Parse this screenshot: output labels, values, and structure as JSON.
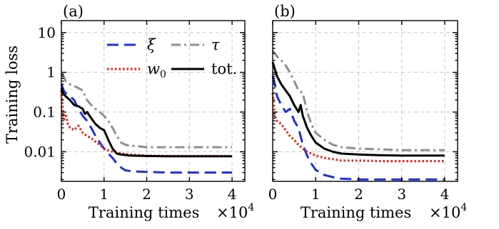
{
  "chart_data": [
    {
      "type": "line",
      "panel_label": "(a)",
      "xlabel": "Training times",
      "x_multiplier_label": "×10",
      "x_multiplier_exp": "4",
      "ylabel": "Training loss",
      "yscale": "log",
      "xlim": [
        0,
        4.3
      ],
      "ylim": [
        0.0018,
        20
      ],
      "xticks": [
        0,
        1,
        2,
        3,
        4
      ],
      "xtick_labels": [
        "0",
        "1",
        "2",
        "3",
        "4"
      ],
      "yticks": [
        0.01,
        0.1,
        1,
        10
      ],
      "ytick_labels": [
        "0.01",
        "0.1",
        "1",
        "10"
      ],
      "grid": true,
      "legend_position": "upper-right",
      "series": [
        {
          "name": "ξ",
          "name_style": "italic",
          "color": "#1f2fd9",
          "style": "dashed",
          "x": [
            0,
            0.05,
            0.1,
            0.2,
            0.3,
            0.4,
            0.5,
            0.6,
            0.7,
            0.8,
            0.9,
            1.0,
            1.1,
            1.2,
            1.3,
            1.4,
            1.5,
            1.7,
            2.0,
            2.5,
            3.0,
            3.5,
            4.0
          ],
          "y": [
            0.5,
            0.35,
            0.3,
            0.25,
            0.2,
            0.12,
            0.08,
            0.06,
            0.04,
            0.025,
            0.017,
            0.012,
            0.009,
            0.007,
            0.005,
            0.004,
            0.0034,
            0.0032,
            0.0031,
            0.003,
            0.003,
            0.003,
            0.003
          ]
        },
        {
          "name": "w",
          "name_sub": "0",
          "name_style": "italic",
          "color": "#e8231c",
          "style": "dotted",
          "x": [
            0,
            0.05,
            0.1,
            0.15,
            0.2,
            0.3,
            0.4,
            0.5,
            0.6,
            0.7,
            0.8,
            0.9,
            1.0,
            1.2,
            1.4,
            1.6,
            2.0,
            2.5,
            3.0,
            3.5,
            4.0
          ],
          "y": [
            0.35,
            0.06,
            0.09,
            0.05,
            0.04,
            0.035,
            0.045,
            0.03,
            0.025,
            0.022,
            0.018,
            0.015,
            0.012,
            0.01,
            0.009,
            0.0085,
            0.008,
            0.0078,
            0.0078,
            0.0078,
            0.0078
          ]
        },
        {
          "name": "τ",
          "name_style": "italic",
          "color": "#8f8f8f",
          "style": "dashdot",
          "x": [
            0,
            0.05,
            0.1,
            0.2,
            0.3,
            0.4,
            0.5,
            0.6,
            0.7,
            0.8,
            0.9,
            1.0,
            1.1,
            1.2,
            1.3,
            1.4,
            1.5,
            1.7,
            2.0,
            2.5,
            3.0,
            3.5,
            4.0
          ],
          "y": [
            0.9,
            0.8,
            0.6,
            0.5,
            0.45,
            0.4,
            0.35,
            0.2,
            0.15,
            0.12,
            0.1,
            0.08,
            0.06,
            0.04,
            0.025,
            0.017,
            0.015,
            0.014,
            0.013,
            0.013,
            0.013,
            0.013,
            0.013
          ]
        },
        {
          "name": "tot.",
          "name_style": "normal",
          "color": "#000000",
          "style": "solid",
          "x": [
            0,
            0.05,
            0.1,
            0.2,
            0.3,
            0.4,
            0.5,
            0.55,
            0.6,
            0.7,
            0.8,
            0.9,
            1.0,
            1.1,
            1.2,
            1.3,
            1.4,
            1.6,
            2.0,
            2.5,
            3.0,
            3.5,
            4.0
          ],
          "y": [
            0.4,
            0.28,
            0.25,
            0.2,
            0.15,
            0.14,
            0.12,
            0.09,
            0.1,
            0.07,
            0.05,
            0.04,
            0.035,
            0.02,
            0.012,
            0.009,
            0.0085,
            0.008,
            0.0078,
            0.0077,
            0.0077,
            0.0077,
            0.0077
          ]
        }
      ]
    },
    {
      "type": "line",
      "panel_label": "(b)",
      "xlabel": "Training times",
      "x_multiplier_label": "×10",
      "x_multiplier_exp": "4",
      "ylabel": "",
      "yscale": "log",
      "xlim": [
        0,
        4.3
      ],
      "ylim": [
        0.0018,
        20
      ],
      "xticks": [
        0,
        1,
        2,
        3,
        4
      ],
      "xtick_labels": [
        "0",
        "1",
        "2",
        "3",
        "4"
      ],
      "yticks": [
        0.01,
        0.1,
        1,
        10
      ],
      "grid": true,
      "series": [
        {
          "name": "ξ",
          "color": "#1f2fd9",
          "style": "dashed",
          "x": [
            0,
            0.05,
            0.1,
            0.2,
            0.3,
            0.4,
            0.5,
            0.6,
            0.7,
            0.8,
            0.9,
            1.0,
            1.2,
            1.4,
            1.6,
            2.0,
            2.5,
            3.0,
            3.5,
            4.0
          ],
          "y": [
            0.8,
            0.5,
            0.25,
            0.15,
            0.1,
            0.12,
            0.06,
            0.04,
            0.015,
            0.008,
            0.005,
            0.0035,
            0.0026,
            0.0023,
            0.0021,
            0.002,
            0.002,
            0.002,
            0.002,
            0.002
          ]
        },
        {
          "name": "w0",
          "color": "#e8231c",
          "style": "dotted",
          "x": [
            0,
            0.05,
            0.1,
            0.2,
            0.3,
            0.4,
            0.5,
            0.6,
            0.7,
            0.8,
            0.9,
            1.0,
            1.2,
            1.4,
            1.6,
            2.0,
            2.5,
            3.0,
            3.5,
            4.0
          ],
          "y": [
            0.3,
            0.08,
            0.06,
            0.05,
            0.035,
            0.025,
            0.02,
            0.015,
            0.012,
            0.01,
            0.009,
            0.008,
            0.007,
            0.0065,
            0.006,
            0.006,
            0.0058,
            0.0058,
            0.0058,
            0.0058
          ]
        },
        {
          "name": "τ",
          "color": "#8f8f8f",
          "style": "dashdot",
          "x": [
            0,
            0.05,
            0.1,
            0.2,
            0.3,
            0.4,
            0.5,
            0.6,
            0.7,
            0.8,
            0.9,
            1.0,
            1.2,
            1.4,
            1.6,
            2.0,
            2.5,
            3.0,
            3.5,
            4.0
          ],
          "y": [
            3.5,
            3.0,
            2.5,
            2.0,
            1.5,
            1.0,
            0.6,
            0.35,
            0.3,
            0.1,
            0.05,
            0.03,
            0.02,
            0.015,
            0.013,
            0.012,
            0.0115,
            0.011,
            0.011,
            0.011
          ]
        },
        {
          "name": "tot.",
          "color": "#000000",
          "style": "solid",
          "x": [
            0,
            0.05,
            0.1,
            0.2,
            0.3,
            0.4,
            0.5,
            0.6,
            0.65,
            0.7,
            0.8,
            0.9,
            1.0,
            1.2,
            1.4,
            1.6,
            2.0,
            2.5,
            3.0,
            3.5,
            4.0
          ],
          "y": [
            1.8,
            1.2,
            0.8,
            0.5,
            0.35,
            0.25,
            0.15,
            0.1,
            0.15,
            0.08,
            0.04,
            0.025,
            0.017,
            0.012,
            0.01,
            0.009,
            0.0085,
            0.0082,
            0.008,
            0.008,
            0.008
          ]
        }
      ]
    }
  ]
}
